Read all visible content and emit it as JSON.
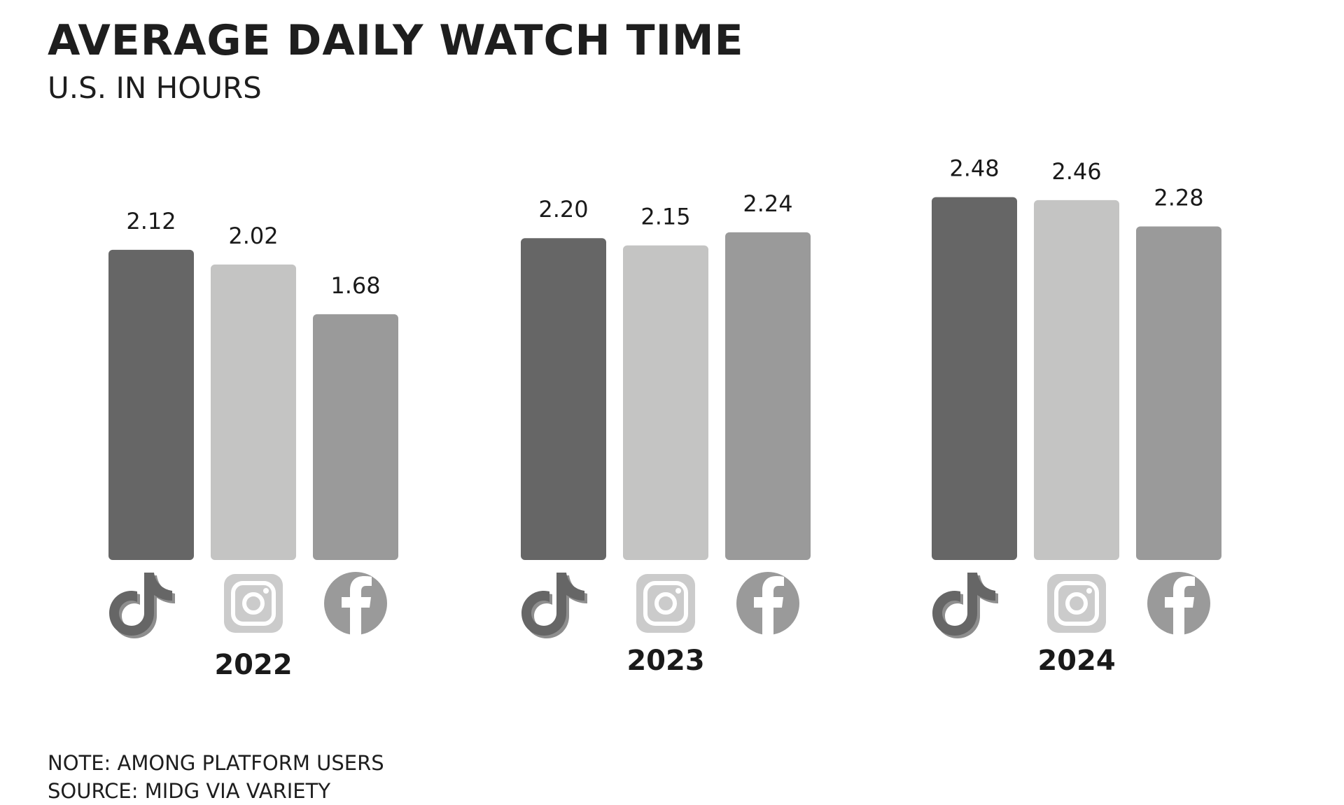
{
  "header": {
    "title": "AVERAGE DAILY WATCH TIME",
    "subtitle": "U.S. IN HOURS"
  },
  "footer": {
    "note": "NOTE: AMONG PLATFORM USERS",
    "source": "SOURCE: MIDG VIA VARIETY"
  },
  "chart_data": {
    "type": "bar",
    "title": "AVERAGE DAILY WATCH TIME",
    "subtitle": "U.S. IN HOURS",
    "categories": [
      "2022",
      "2023",
      "2024"
    ],
    "ylim": [
      0,
      2.6
    ],
    "grid": false,
    "legend": "platform-icons-below-bars",
    "series": [
      {
        "icon": "tiktok-icon",
        "color": "#666666",
        "labels": [
          "2.12",
          "2.20",
          "2.48"
        ],
        "values": [
          2.12,
          2.2,
          2.48
        ]
      },
      {
        "icon": "instagram-icon",
        "color": "#c4c4c3",
        "labels": [
          "2.02",
          "2.15",
          "2.46"
        ],
        "values": [
          2.02,
          2.15,
          2.46
        ]
      },
      {
        "icon": "facebook-icon",
        "color": "#9a9a9a",
        "labels": [
          "1.68",
          "2.24",
          "2.28"
        ],
        "values": [
          1.68,
          2.24,
          2.28
        ]
      }
    ]
  }
}
